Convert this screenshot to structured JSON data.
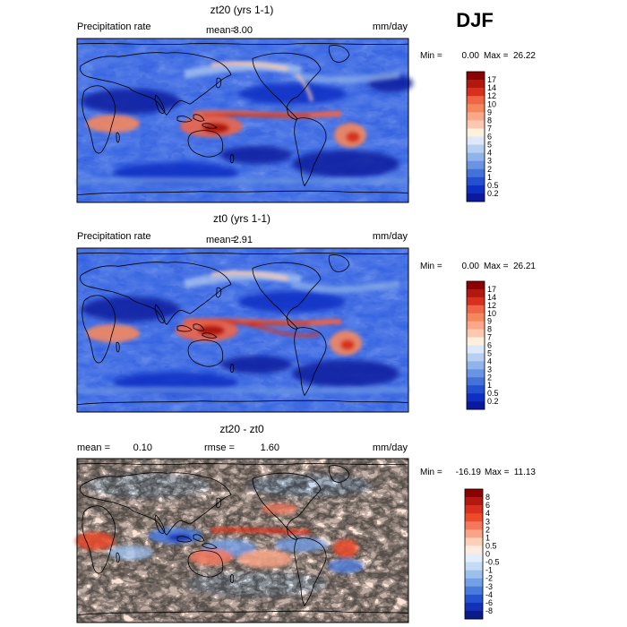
{
  "season": "DJF",
  "panels": [
    {
      "title": "zt20 (yrs 1-1)",
      "left_label": "Precipitation rate",
      "center_label": "mean=",
      "center_value": "3.00",
      "right_label": "",
      "right_value": "",
      "units": "mm/day",
      "min_label": "Min =",
      "min_value": "0.00",
      "max_label": "Max =",
      "max_value": "26.22"
    },
    {
      "title": "zt0 (yrs 1-1)",
      "left_label": "Precipitation rate",
      "center_label": "mean=",
      "center_value": "2.91",
      "right_label": "",
      "right_value": "",
      "units": "mm/day",
      "min_label": "Min =",
      "min_value": "0.00",
      "max_label": "Max =",
      "max_value": "26.21"
    },
    {
      "title": "zt20 - zt0",
      "left_label": "mean =",
      "left_value": "0.10",
      "center_label": "rmse =",
      "center_value": "1.60",
      "units": "mm/day",
      "min_label": "Min =",
      "min_value": "-16.19",
      "max_label": "Max =",
      "max_value": "11.13"
    }
  ],
  "chart_data": [
    {
      "type": "heatmap",
      "title": "zt20 (yrs 1-1)",
      "field": "Precipitation rate",
      "units": "mm/day",
      "mean": 3.0,
      "min": 0.0,
      "max": 26.22,
      "colorbar_levels": [
        "17",
        "14",
        "12",
        "10",
        "9",
        "8",
        "7",
        "6",
        "5",
        "4",
        "3",
        "2",
        "1",
        "0.5",
        "0.2"
      ],
      "colorbar_colors": [
        "#8b0000",
        "#b2180e",
        "#d7301f",
        "#ef6548",
        "#f4875e",
        "#f9a88a",
        "#fcc9b0",
        "#fdf0dd",
        "#dde9f8",
        "#b7d0f2",
        "#8fb3ea",
        "#6a94e3",
        "#4472d9",
        "#2450d0",
        "#0f2fc4",
        "#0a1a9e"
      ]
    },
    {
      "type": "heatmap",
      "title": "zt0 (yrs 1-1)",
      "field": "Precipitation rate",
      "units": "mm/day",
      "mean": 2.91,
      "min": 0.0,
      "max": 26.21,
      "colorbar_levels": [
        "17",
        "14",
        "12",
        "10",
        "9",
        "8",
        "7",
        "6",
        "5",
        "4",
        "3",
        "2",
        "1",
        "0.5",
        "0.2"
      ],
      "colorbar_colors": [
        "#8b0000",
        "#b2180e",
        "#d7301f",
        "#ef6548",
        "#f4875e",
        "#f9a88a",
        "#fcc9b0",
        "#fdf0dd",
        "#dde9f8",
        "#b7d0f2",
        "#8fb3ea",
        "#6a94e3",
        "#4472d9",
        "#2450d0",
        "#0f2fc4",
        "#0a1a9e"
      ]
    },
    {
      "type": "heatmap",
      "title": "zt20 - zt0",
      "units": "mm/day",
      "mean": 0.1,
      "rmse": 1.6,
      "min": -16.19,
      "max": 11.13,
      "colorbar_levels": [
        "8",
        "6",
        "4",
        "3",
        "2",
        "1",
        "0.5",
        "0",
        "-0.5",
        "-1",
        "-2",
        "-3",
        "-4",
        "-6",
        "-8"
      ],
      "colorbar_colors": [
        "#8b0000",
        "#b2180e",
        "#d7301f",
        "#ef4a2a",
        "#f4785c",
        "#f9a486",
        "#fcd0b8",
        "#fdebe0",
        "#e3eefb",
        "#c4dbf5",
        "#9cc0ee",
        "#739fe6",
        "#4a7bdc",
        "#2552cf",
        "#1230b8",
        "#0a1a8a"
      ]
    }
  ]
}
